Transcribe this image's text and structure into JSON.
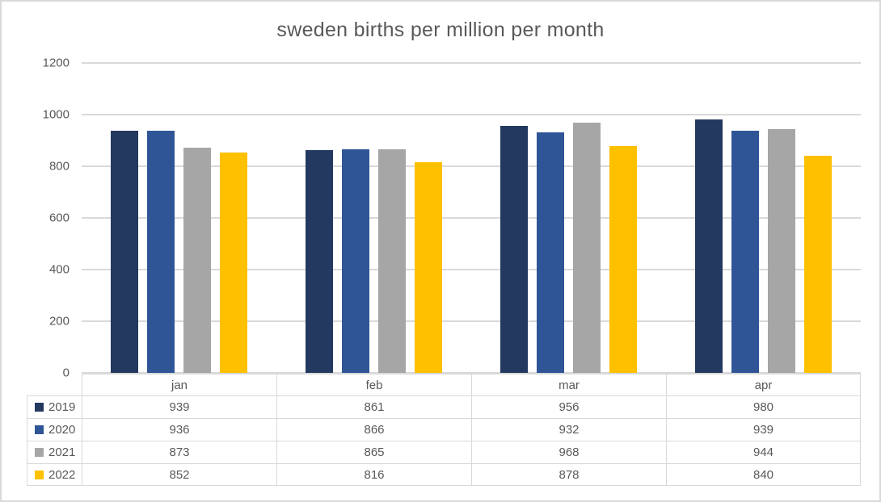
{
  "chart_data": {
    "type": "bar",
    "title": "sweden births per million per month",
    "xlabel": "",
    "ylabel": "",
    "categories": [
      "jan",
      "feb",
      "mar",
      "apr"
    ],
    "series": [
      {
        "name": "2019",
        "color": "#23395f",
        "values": [
          939,
          861,
          956,
          980
        ]
      },
      {
        "name": "2020",
        "color": "#2f5597",
        "values": [
          936,
          866,
          932,
          939
        ]
      },
      {
        "name": "2021",
        "color": "#a6a6a6",
        "values": [
          873,
          865,
          968,
          944
        ]
      },
      {
        "name": "2022",
        "color": "#ffc000",
        "values": [
          852,
          816,
          878,
          840
        ]
      }
    ],
    "ylim": [
      0,
      1200
    ],
    "yticks": [
      0,
      200,
      400,
      600,
      800,
      1000,
      1200
    ],
    "grid": true,
    "legend_position": "data-table-left",
    "data_table_shown": true
  },
  "colors": {
    "grid": "#d9d9d9",
    "text": "#595959",
    "outer_border": "#d9d9d9",
    "background": "#ffffff"
  }
}
